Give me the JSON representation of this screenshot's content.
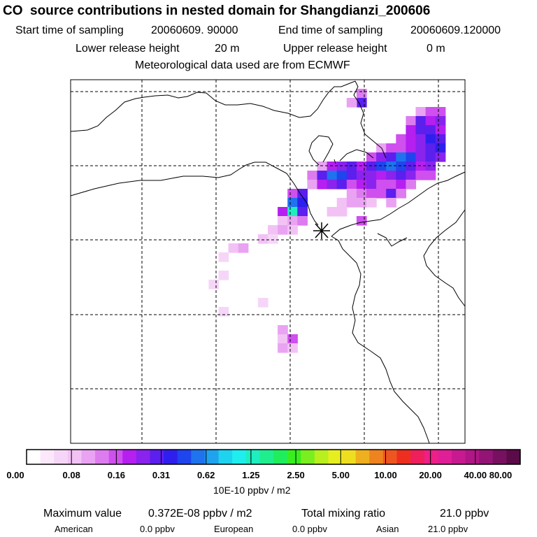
{
  "header": {
    "title": "CO  source contributions in nested domain for Shangdianzi_200606",
    "start_label": "Start time of sampling",
    "start_value": "20060609. 90000",
    "end_label": "End time of sampling",
    "end_value": "20060609.120000",
    "lower_label": "Lower release height",
    "lower_value": "20 m",
    "upper_label": "Upper release height",
    "upper_value": "0 m",
    "met_line": "Meteorological data used are from ECMWF"
  },
  "map": {
    "receptor_marker": "receptor-star-icon",
    "contribution_cells": [
      {
        "col": 29,
        "row": 1,
        "level": 5
      },
      {
        "col": 29,
        "row": 2,
        "level": 9
      },
      {
        "col": 28,
        "row": 2,
        "level": 4
      },
      {
        "col": 35,
        "row": 3,
        "level": 4
      },
      {
        "col": 36,
        "row": 3,
        "level": 6
      },
      {
        "col": 37,
        "row": 3,
        "level": 6
      },
      {
        "col": 34,
        "row": 4,
        "level": 5
      },
      {
        "col": 35,
        "row": 4,
        "level": 9
      },
      {
        "col": 36,
        "row": 4,
        "level": 7
      },
      {
        "col": 37,
        "row": 4,
        "level": 8
      },
      {
        "col": 34,
        "row": 5,
        "level": 7
      },
      {
        "col": 35,
        "row": 5,
        "level": 9
      },
      {
        "col": 36,
        "row": 5,
        "level": 9
      },
      {
        "col": 37,
        "row": 5,
        "level": 7
      },
      {
        "col": 33,
        "row": 6,
        "level": 6
      },
      {
        "col": 34,
        "row": 6,
        "level": 7
      },
      {
        "col": 35,
        "row": 6,
        "level": 8
      },
      {
        "col": 36,
        "row": 6,
        "level": 10
      },
      {
        "col": 37,
        "row": 6,
        "level": 9
      },
      {
        "col": 31,
        "row": 7,
        "level": 4
      },
      {
        "col": 32,
        "row": 7,
        "level": 6
      },
      {
        "col": 33,
        "row": 7,
        "level": 6
      },
      {
        "col": 34,
        "row": 7,
        "level": 7
      },
      {
        "col": 35,
        "row": 7,
        "level": 8
      },
      {
        "col": 36,
        "row": 7,
        "level": 9
      },
      {
        "col": 37,
        "row": 7,
        "level": 10
      },
      {
        "col": 30,
        "row": 8,
        "level": 6
      },
      {
        "col": 31,
        "row": 8,
        "level": 8
      },
      {
        "col": 32,
        "row": 8,
        "level": 9
      },
      {
        "col": 33,
        "row": 8,
        "level": 12
      },
      {
        "col": 34,
        "row": 8,
        "level": 11
      },
      {
        "col": 35,
        "row": 8,
        "level": 8
      },
      {
        "col": 36,
        "row": 8,
        "level": 9
      },
      {
        "col": 37,
        "row": 8,
        "level": 8
      },
      {
        "col": 25,
        "row": 9,
        "level": 4
      },
      {
        "col": 26,
        "row": 9,
        "level": 7
      },
      {
        "col": 27,
        "row": 9,
        "level": 8
      },
      {
        "col": 28,
        "row": 9,
        "level": 9
      },
      {
        "col": 29,
        "row": 9,
        "level": 7
      },
      {
        "col": 30,
        "row": 9,
        "level": 9
      },
      {
        "col": 31,
        "row": 9,
        "level": 11
      },
      {
        "col": 32,
        "row": 9,
        "level": 12
      },
      {
        "col": 33,
        "row": 9,
        "level": 11
      },
      {
        "col": 34,
        "row": 9,
        "level": 9
      },
      {
        "col": 35,
        "row": 9,
        "level": 7
      },
      {
        "col": 36,
        "row": 9,
        "level": 8
      },
      {
        "col": 24,
        "row": 10,
        "level": 5
      },
      {
        "col": 25,
        "row": 10,
        "level": 9
      },
      {
        "col": 26,
        "row": 10,
        "level": 12
      },
      {
        "col": 27,
        "row": 10,
        "level": 11
      },
      {
        "col": 28,
        "row": 10,
        "level": 9
      },
      {
        "col": 29,
        "row": 10,
        "level": 8
      },
      {
        "col": 30,
        "row": 10,
        "level": 8
      },
      {
        "col": 31,
        "row": 10,
        "level": 7
      },
      {
        "col": 32,
        "row": 10,
        "level": 8
      },
      {
        "col": 33,
        "row": 10,
        "level": 9
      },
      {
        "col": 34,
        "row": 10,
        "level": 8
      },
      {
        "col": 35,
        "row": 10,
        "level": 6
      },
      {
        "col": 36,
        "row": 10,
        "level": 6
      },
      {
        "col": 24,
        "row": 11,
        "level": 4
      },
      {
        "col": 25,
        "row": 11,
        "level": 7
      },
      {
        "col": 26,
        "row": 11,
        "level": 8
      },
      {
        "col": 27,
        "row": 11,
        "level": 9
      },
      {
        "col": 28,
        "row": 11,
        "level": 6
      },
      {
        "col": 29,
        "row": 11,
        "level": 7
      },
      {
        "col": 30,
        "row": 11,
        "level": 8
      },
      {
        "col": 31,
        "row": 11,
        "level": 6
      },
      {
        "col": 32,
        "row": 11,
        "level": 6
      },
      {
        "col": 33,
        "row": 11,
        "level": 7
      },
      {
        "col": 34,
        "row": 11,
        "level": 5
      },
      {
        "col": 22,
        "row": 12,
        "level": 6
      },
      {
        "col": 23,
        "row": 12,
        "level": 9
      },
      {
        "col": 28,
        "row": 12,
        "level": 4
      },
      {
        "col": 29,
        "row": 12,
        "level": 5
      },
      {
        "col": 30,
        "row": 12,
        "level": 6
      },
      {
        "col": 31,
        "row": 12,
        "level": 6
      },
      {
        "col": 32,
        "row": 12,
        "level": 9
      },
      {
        "col": 33,
        "row": 12,
        "level": 5
      },
      {
        "col": 22,
        "row": 13,
        "level": 12
      },
      {
        "col": 23,
        "row": 13,
        "level": 10
      },
      {
        "col": 27,
        "row": 13,
        "level": 3
      },
      {
        "col": 28,
        "row": 13,
        "level": 4
      },
      {
        "col": 29,
        "row": 13,
        "level": 4
      },
      {
        "col": 30,
        "row": 13,
        "level": 3
      },
      {
        "col": 32,
        "row": 13,
        "level": 4
      },
      {
        "col": 21,
        "row": 14,
        "level": 7
      },
      {
        "col": 22,
        "row": 14,
        "level": 16
      },
      {
        "col": 23,
        "row": 14,
        "level": 9
      },
      {
        "col": 26,
        "row": 14,
        "level": 3
      },
      {
        "col": 27,
        "row": 14,
        "level": 3
      },
      {
        "col": 21,
        "row": 15,
        "level": 3
      },
      {
        "col": 22,
        "row": 15,
        "level": 4
      },
      {
        "col": 23,
        "row": 15,
        "level": 5
      },
      {
        "col": 29,
        "row": 15,
        "level": 6
      },
      {
        "col": 20,
        "row": 16,
        "level": 3
      },
      {
        "col": 21,
        "row": 16,
        "level": 4
      },
      {
        "col": 22,
        "row": 16,
        "level": 3
      },
      {
        "col": 19,
        "row": 17,
        "level": 3
      },
      {
        "col": 20,
        "row": 17,
        "level": 2
      },
      {
        "col": 16,
        "row": 18,
        "level": 3
      },
      {
        "col": 17,
        "row": 18,
        "level": 4
      },
      {
        "col": 15,
        "row": 19,
        "level": 2
      },
      {
        "col": 15,
        "row": 21,
        "level": 2
      },
      {
        "col": 14,
        "row": 22,
        "level": 2
      },
      {
        "col": 19,
        "row": 24,
        "level": 2
      },
      {
        "col": 15,
        "row": 25,
        "level": 2
      },
      {
        "col": 21,
        "row": 27,
        "level": 4
      },
      {
        "col": 21,
        "row": 28,
        "level": 3
      },
      {
        "col": 22,
        "row": 28,
        "level": 6
      },
      {
        "col": 21,
        "row": 29,
        "level": 4
      },
      {
        "col": 22,
        "row": 29,
        "level": 3
      }
    ]
  },
  "colorbar": {
    "colors": [
      "#ffffff",
      "#fbe9fb",
      "#f6d6f8",
      "#f2c2f5",
      "#e9a3f2",
      "#dd7cef",
      "#cf50ee",
      "#b51ff0",
      "#8a23ee",
      "#5b1fee",
      "#2f1fee",
      "#1f45ee",
      "#1f73ee",
      "#1fa3ee",
      "#1fd2ee",
      "#1feeee",
      "#1feec0",
      "#1fee8e",
      "#1fee5c",
      "#38ee1f",
      "#7aee1f",
      "#b9ee1f",
      "#e7ee1f",
      "#eede1f",
      "#eeb01f",
      "#ee831f",
      "#ee561f",
      "#ee2f1f",
      "#ee1f5b",
      "#ee1f86",
      "#e01f96",
      "#c81a90",
      "#b01685",
      "#931475",
      "#781060",
      "#5a0b48"
    ],
    "tick_labels": [
      "0.00",
      "0.08",
      "0.16",
      "0.31",
      "0.62",
      "1.25",
      "2.50",
      "5.00",
      "10.00",
      "20.00",
      "40.00",
      "80.00"
    ],
    "units": "10E-10 ppbv / m2"
  },
  "footer": {
    "max_label": "Maximum value",
    "max_value": "0.372E-08 ppbv / m2",
    "total_label": "Total mixing ratio",
    "total_value": "21.0 ppbv",
    "american_label": "American",
    "american_value": "0.0 ppbv",
    "european_label": "European",
    "european_value": "0.0 ppbv",
    "asian_label": "Asian",
    "asian_value": "21.0 ppbv"
  }
}
